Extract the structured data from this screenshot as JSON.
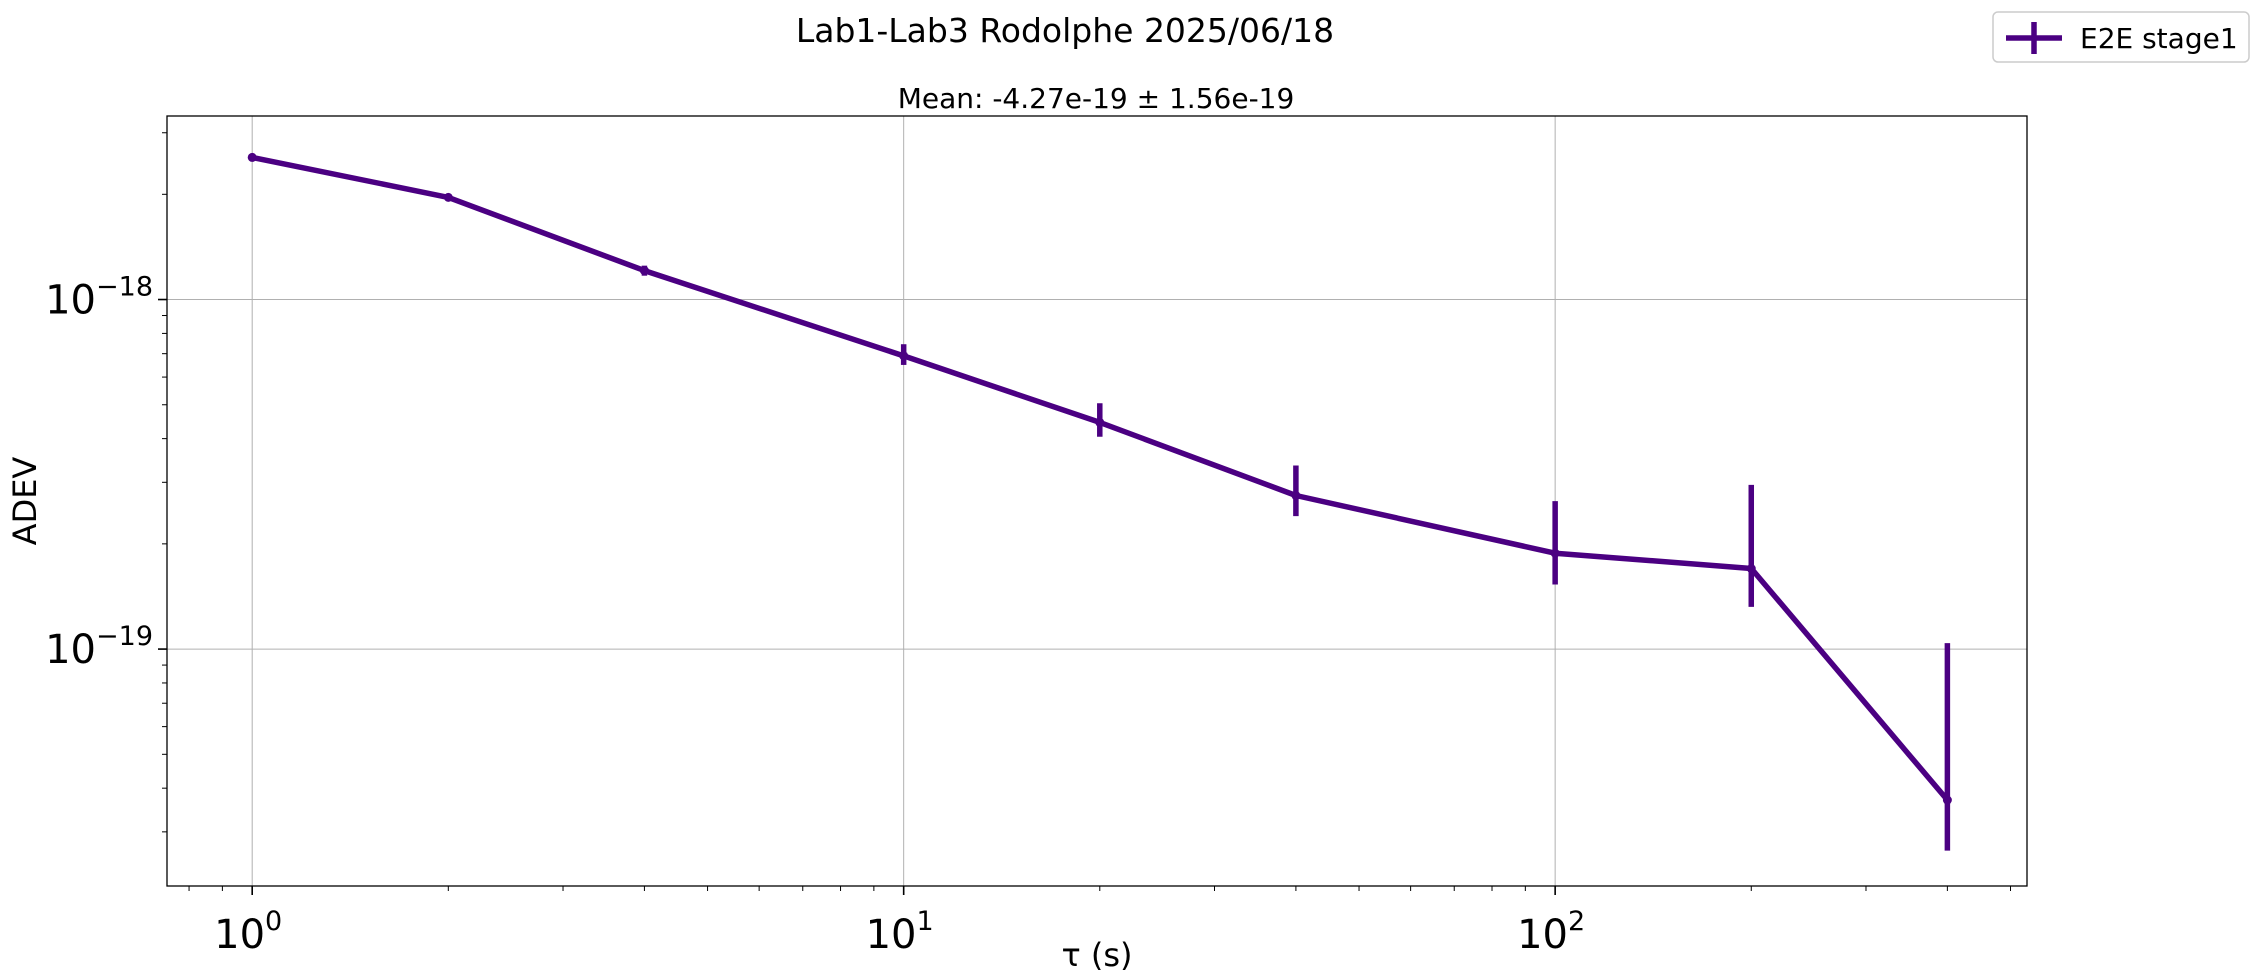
{
  "figure": {
    "suptitle": "Lab1-Lab3 Rodolphe 2025/06/18",
    "title": "Mean: -4.27e-19 ± 1.56e-19"
  },
  "chart_data": {
    "type": "line",
    "title": "Mean: -4.27e-19 ± 1.56e-19",
    "xlabel": "τ (s)",
    "ylabel": "ADEV",
    "xscale": "log",
    "yscale": "log",
    "xlim": [
      0.74,
      530
    ],
    "ylim": [
      2.1e-20,
      3.35e-18
    ],
    "grid": true,
    "legend_position": "upper right outside",
    "x_ticks": [
      {
        "value": 1,
        "base": "10",
        "exp": "0"
      },
      {
        "value": 10,
        "base": "10",
        "exp": "1"
      },
      {
        "value": 100,
        "base": "10",
        "exp": "2"
      }
    ],
    "y_ticks": [
      {
        "value": 1e-18,
        "base": "10",
        "exp": "−18"
      },
      {
        "value": 1e-19,
        "base": "10",
        "exp": "−19"
      }
    ],
    "series": [
      {
        "name": "E2E stage1",
        "color": "#4b0082",
        "x": [
          1,
          2,
          4,
          10,
          20,
          40,
          100,
          200,
          400
        ],
        "y": [
          2.55e-18,
          1.96e-18,
          1.21e-18,
          6.9e-19,
          4.45e-19,
          2.75e-19,
          1.88e-19,
          1.7e-19,
          3.7e-20
        ],
        "yerr_low": [
          2.5e-18,
          1.92e-18,
          1.17e-18,
          6.5e-19,
          4.05e-19,
          2.4e-19,
          1.53e-19,
          1.32e-19,
          2.65e-20
        ],
        "yerr_high": [
          2.6e-18,
          2e-18,
          1.25e-18,
          7.45e-19,
          5.05e-19,
          3.35e-19,
          2.65e-19,
          2.95e-19,
          1.04e-19
        ]
      }
    ]
  }
}
